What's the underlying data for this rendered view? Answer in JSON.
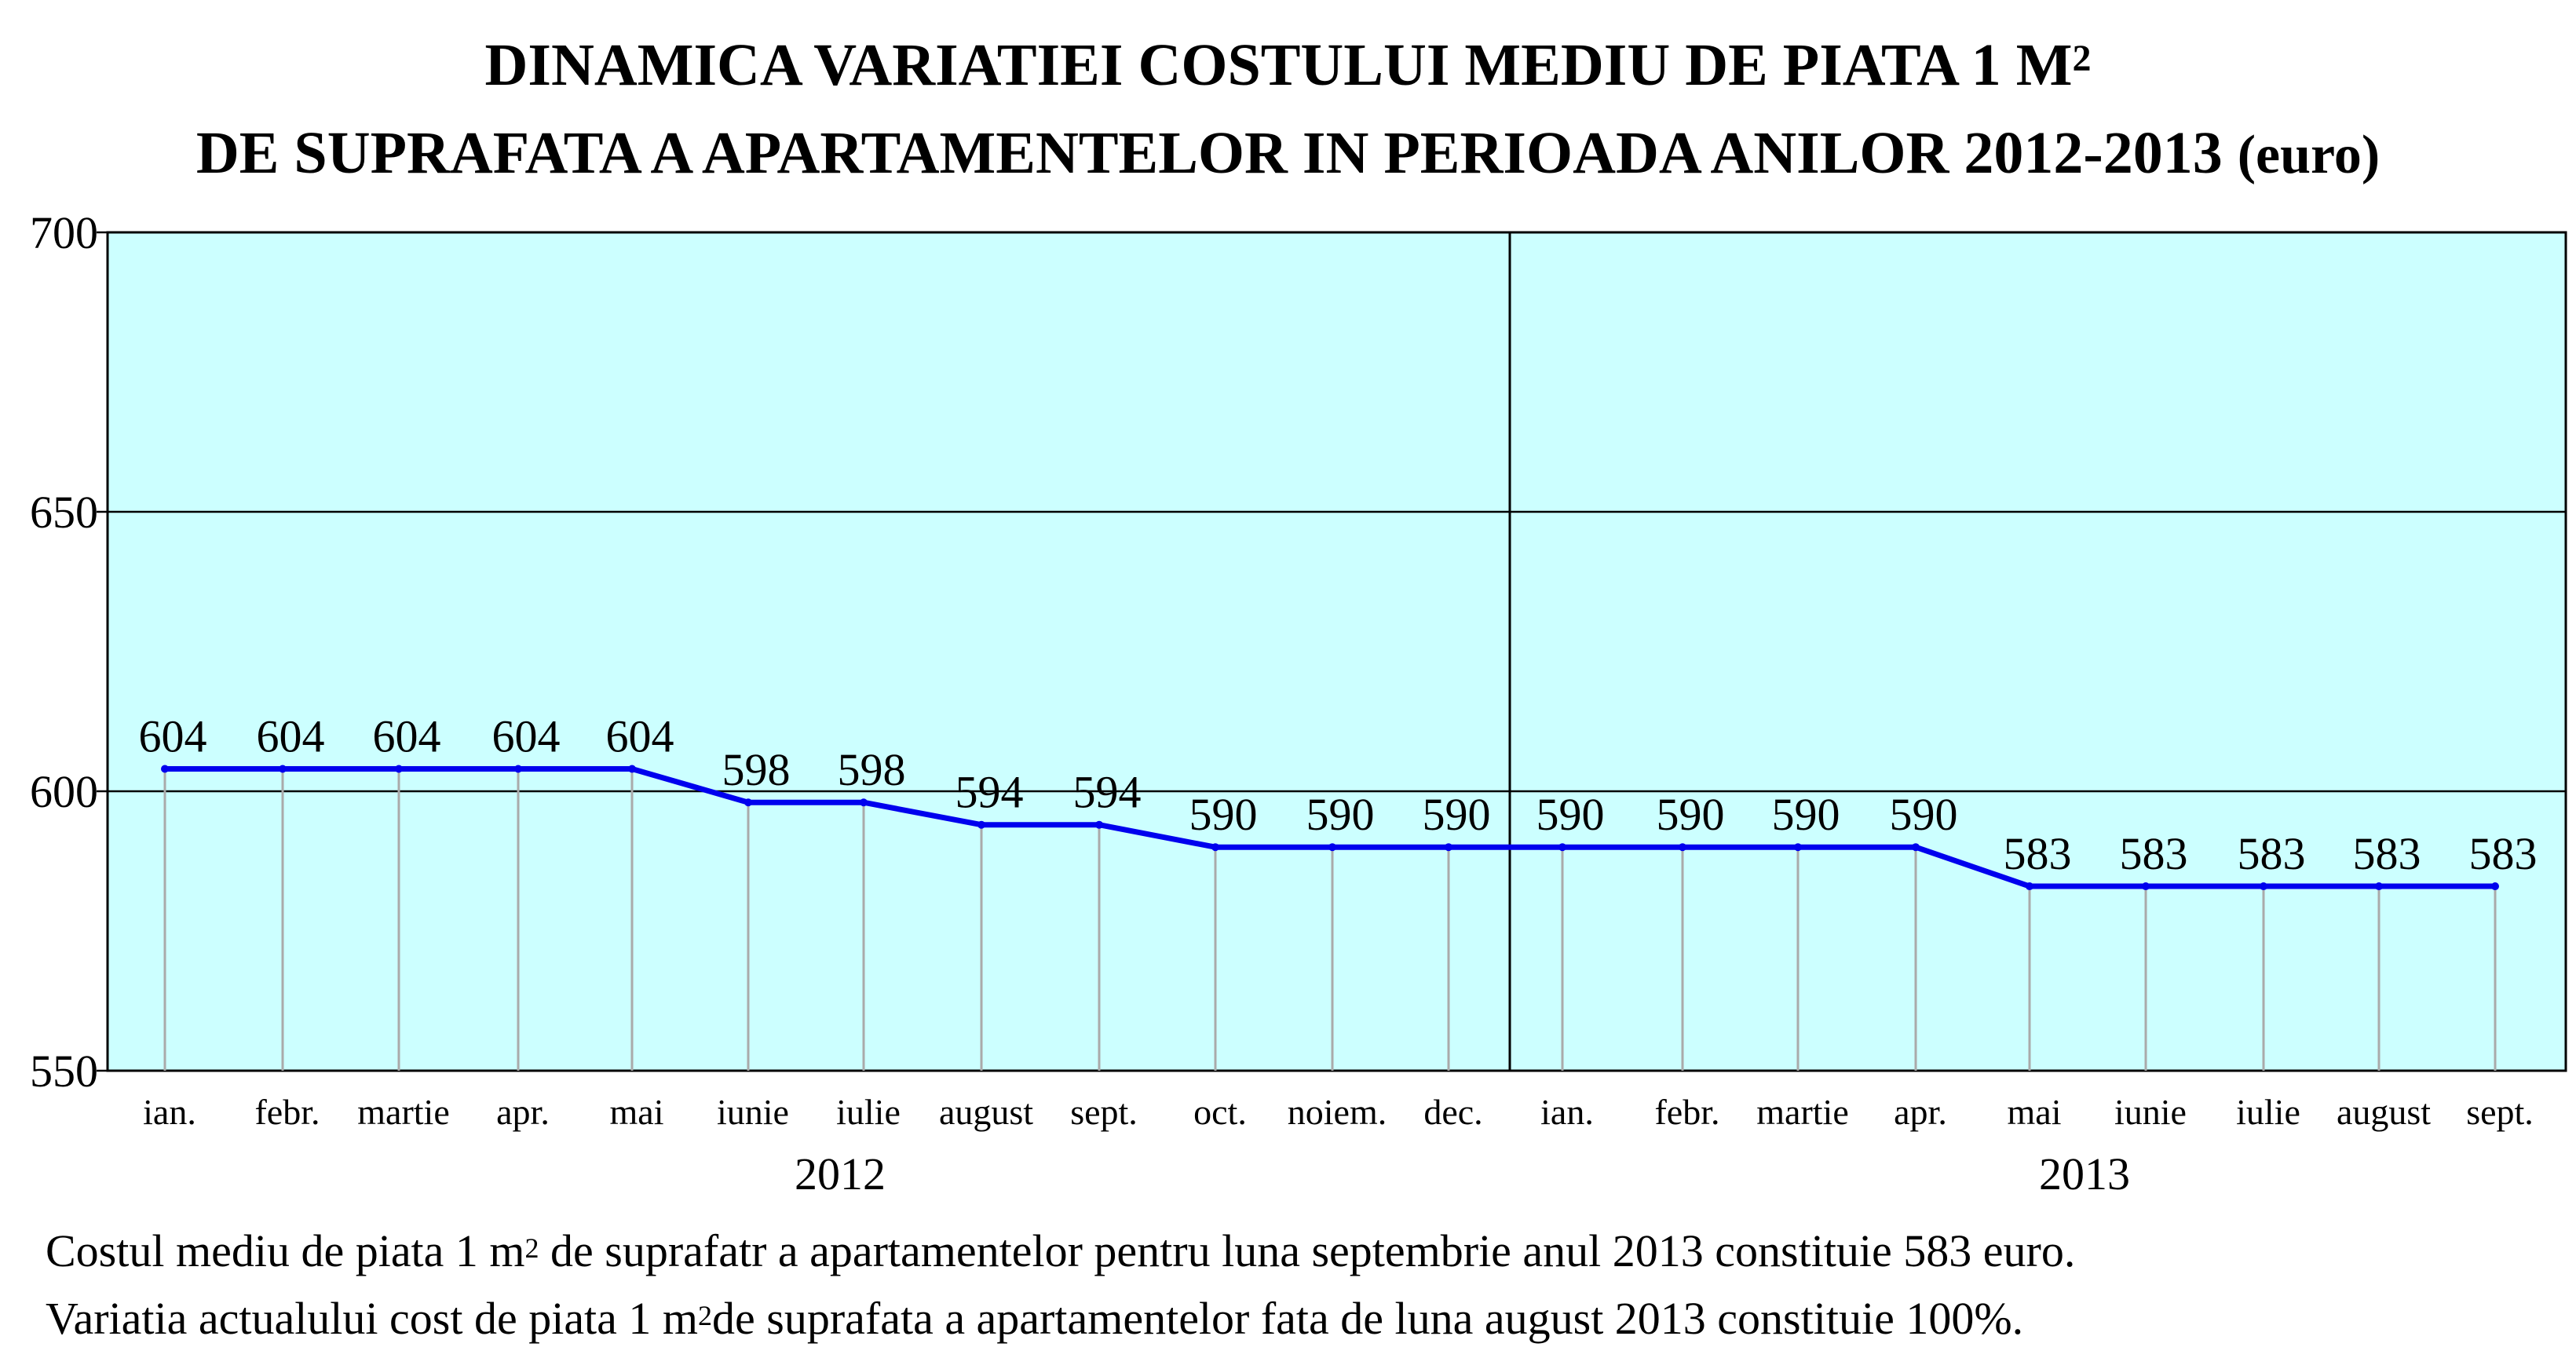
{
  "title": {
    "line1": "DINAMICA VARIATIEI COSTULUI MEDIU DE PIATA 1 M",
    "line1_sup": "2",
    "line2": "DE SUPRAFATA A APARTAMENTELOR IN PERIOADA ANILOR 2012-2013",
    "unit": "(euro)"
  },
  "chart_data": {
    "type": "line",
    "ylim": [
      550,
      700
    ],
    "yticks": [
      550,
      600,
      650,
      700
    ],
    "grid": true,
    "background_color": "#ccffff",
    "line_color": "#0000ee",
    "groups": [
      {
        "label": "2012",
        "months": [
          "ian.",
          "febr.",
          "martie",
          "apr.",
          "mai",
          "iunie",
          "iulie",
          "august",
          "sept.",
          "oct.",
          "noiem.",
          "dec."
        ]
      },
      {
        "label": "2013",
        "months": [
          "ian.",
          "febr.",
          "martie",
          "apr.",
          "mai",
          "iunie",
          "iulie",
          "august",
          "sept."
        ]
      }
    ],
    "values": [
      604,
      604,
      604,
      604,
      604,
      598,
      598,
      594,
      594,
      590,
      590,
      590,
      590,
      590,
      590,
      590,
      583,
      583,
      583,
      583,
      583
    ]
  },
  "footer": {
    "line1_a": "Costul mediu de piata 1 m",
    "line1_sup": "2",
    "line1_b": " de suprafatr a apartamentelor pentru luna septembrie anul 2013 constituie 583 euro.",
    "line2_a": "Variatia actualului cost de piata 1 m",
    "line2_sup": "2",
    "line2_b": "de suprafata a apartamentelor fata de luna august 2013 constituie 100%."
  }
}
